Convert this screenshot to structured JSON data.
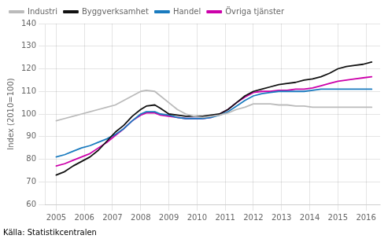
{
  "chart_data": {
    "type": "line",
    "ylabel": "Index (2010=100)",
    "source": "Källa: Statistikcentralen",
    "x": [
      2005.0,
      2005.3,
      2005.6,
      2005.9,
      2006.2,
      2006.5,
      2006.8,
      2007.1,
      2007.4,
      2007.7,
      2008.0,
      2008.2,
      2008.5,
      2008.7,
      2009.0,
      2009.3,
      2009.6,
      2009.9,
      2010.2,
      2010.5,
      2010.8,
      2011.1,
      2011.4,
      2011.7,
      2012.0,
      2012.3,
      2012.6,
      2012.9,
      2013.2,
      2013.5,
      2013.8,
      2014.1,
      2014.4,
      2014.7,
      2015.0,
      2015.3,
      2015.6,
      2015.9,
      2016.2
    ],
    "series": [
      {
        "name": "Industri",
        "color": "#bbbbbb",
        "values": [
          97,
          98,
          99,
          100,
          101,
          102,
          103,
          104,
          106,
          108,
          110,
          110.5,
          110,
          108,
          105,
          102,
          100,
          99,
          98.5,
          99,
          99.5,
          100.5,
          102,
          103,
          104.5,
          104.5,
          104.5,
          104,
          104,
          103.5,
          103.5,
          103,
          103,
          103,
          103,
          103,
          103,
          103,
          103
        ]
      },
      {
        "name": "Byggverksamhet",
        "color": "#111111",
        "values": [
          73,
          74.5,
          77,
          79,
          81,
          84,
          88,
          92,
          95,
          99,
          102,
          103.5,
          104,
          102.5,
          100,
          99.5,
          99,
          99,
          99,
          99.5,
          100,
          102,
          105,
          108,
          110,
          111,
          112,
          113,
          113.5,
          114,
          115,
          115.5,
          116.5,
          118,
          120,
          121,
          121.5,
          122,
          123
        ]
      },
      {
        "name": "Handel",
        "color": "#1a7bbf",
        "values": [
          81,
          82,
          83.5,
          85,
          86,
          87.5,
          89,
          91,
          93.5,
          97,
          100,
          101,
          101,
          100,
          99.5,
          98.5,
          98,
          98,
          98,
          98.5,
          99.5,
          101,
          103.5,
          106,
          108,
          109,
          109.5,
          110,
          110,
          110,
          110,
          110.5,
          111,
          111,
          111,
          111,
          111,
          111,
          111
        ]
      },
      {
        "name": "Övriga tjänster",
        "color": "#cc00aa",
        "values": [
          77,
          78,
          79.5,
          81,
          82.5,
          85,
          87.5,
          90.5,
          93.5,
          97,
          99.5,
          100.5,
          100.5,
          99.5,
          99,
          98.5,
          98,
          98,
          98,
          98.5,
          100,
          102,
          105,
          107.5,
          109.5,
          110,
          110,
          110.5,
          110.5,
          111,
          111,
          111.5,
          112.5,
          113.5,
          114.5,
          115,
          115.5,
          116,
          116.5
        ]
      }
    ],
    "xlim": [
      2004.6,
      2016.5
    ],
    "xticks": [
      2005,
      2006,
      2007,
      2008,
      2009,
      2010,
      2011,
      2012,
      2013,
      2014,
      2015,
      2016
    ],
    "ylim": [
      60,
      140
    ],
    "yticks": [
      60,
      70,
      80,
      90,
      100,
      110,
      120,
      130,
      140
    ],
    "grid": true,
    "legend": "upper left"
  }
}
